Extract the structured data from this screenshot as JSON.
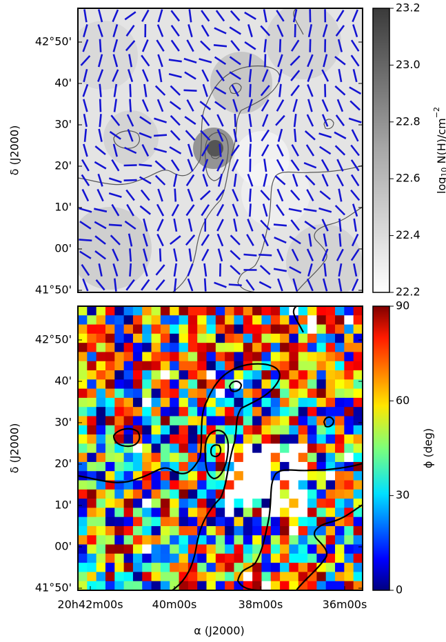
{
  "chart_data": [
    {
      "type": "heatmap",
      "panel": "top",
      "description_of_marks": "grayscale column-density map overlaid with blue polarization segments and gray contours",
      "xlabel": "",
      "ylabel": "δ (J2000)",
      "y_ticks": [
        "42°50'",
        "40'",
        "30'",
        "20'",
        "10'",
        "00'",
        "41°50'"
      ],
      "x_ticks": [],
      "colorbar": {
        "label": "log10 N(H)/cm−2",
        "label_main": "log",
        "label_sub": "10",
        "label_rest": " N(H)/cm",
        "label_sup": "−2",
        "ticks": [
          "23.2",
          "23.0",
          "22.8",
          "22.6",
          "22.4",
          "22.2"
        ],
        "range": [
          22.2,
          23.2
        ],
        "colormap": "gray_r"
      },
      "grid": false,
      "vector_color": "#1414d2",
      "contour_color": "#555555"
    },
    {
      "type": "heatmap",
      "panel": "bottom",
      "description_of_marks": "pixelated angle map (jet colormap) with black contours; white pixels are blank",
      "xlabel": "α (J2000)",
      "ylabel": "δ (J2000)",
      "x_ticks": [
        "20h42m00s",
        "40m00s",
        "38m00s",
        "36m00s"
      ],
      "y_ticks": [
        "42°50'",
        "40'",
        "30'",
        "20'",
        "10'",
        "00'",
        "41°50'"
      ],
      "colorbar": {
        "label": "ϕ (deg)",
        "ticks": [
          "90",
          "60",
          "30",
          "0"
        ],
        "range": [
          0,
          90
        ],
        "colormap": "jet"
      },
      "grid": false,
      "contour_color": "#000000"
    }
  ]
}
